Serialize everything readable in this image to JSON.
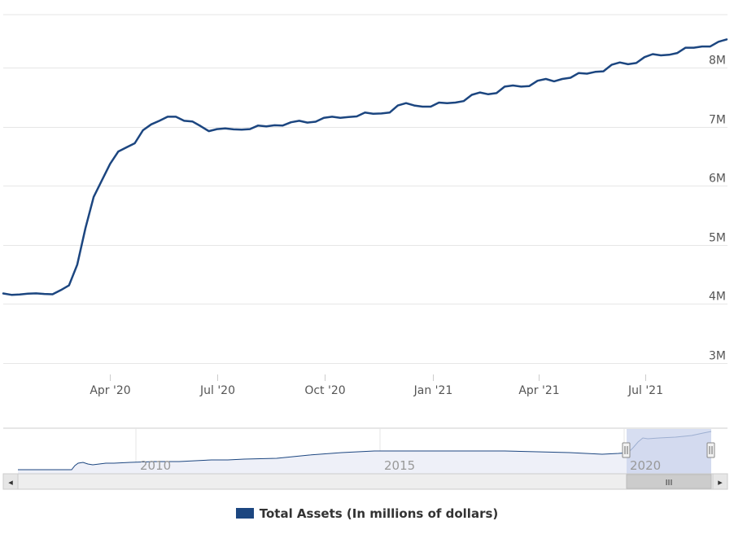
{
  "colors": {
    "series": "#1c4680",
    "grid": "#e6e6e6",
    "axis_text": "#555555",
    "navigator_fill": "#eef0f8",
    "navigator_mask": "#c9d3ec",
    "scrollbar_bg": "#eeeeee",
    "scrollbar_thumb": "#cccccc"
  },
  "legend": {
    "label": "Total Assets (In millions of dollars)"
  },
  "navigator": {
    "labels": [
      "2010",
      "2015",
      "2020"
    ],
    "thumb_grip": "III",
    "left_arrow": "◂",
    "right_arrow": "▸"
  },
  "chart_data": {
    "type": "line",
    "y_axis_side": "right",
    "grid": "horizontal",
    "legend_position": "bottom",
    "ylim": [
      2800000,
      8900000
    ],
    "yticks": [
      {
        "value": 3000000,
        "label": "3M"
      },
      {
        "value": 4000000,
        "label": "4M"
      },
      {
        "value": 5000000,
        "label": "5M"
      },
      {
        "value": 6000000,
        "label": "6M"
      },
      {
        "value": 7000000,
        "label": "7M"
      },
      {
        "value": 8000000,
        "label": "8M"
      }
    ],
    "xlim": [
      "2020-01-01",
      "2021-09-08"
    ],
    "xticks": [
      {
        "date": "2020-04-01",
        "label": "Apr '20"
      },
      {
        "date": "2020-07-01",
        "label": "Jul '20"
      },
      {
        "date": "2020-10-01",
        "label": "Oct '20"
      },
      {
        "date": "2021-01-01",
        "label": "Jan '21"
      },
      {
        "date": "2021-04-01",
        "label": "Apr '21"
      },
      {
        "date": "2021-07-01",
        "label": "Jul '21"
      }
    ],
    "series": [
      {
        "name": "Total Assets (In millions of dollars)",
        "points": [
          [
            "2020-01-01",
            4173000
          ],
          [
            "2020-01-08",
            4150000
          ],
          [
            "2020-01-15",
            4155000
          ],
          [
            "2020-01-22",
            4170000
          ],
          [
            "2020-01-29",
            4175000
          ],
          [
            "2020-02-05",
            4165000
          ],
          [
            "2020-02-12",
            4160000
          ],
          [
            "2020-02-19",
            4230000
          ],
          [
            "2020-02-26",
            4310000
          ],
          [
            "2020-03-04",
            4660000
          ],
          [
            "2020-03-11",
            5280000
          ],
          [
            "2020-03-18",
            5810000
          ],
          [
            "2020-03-25",
            6090000
          ],
          [
            "2020-04-01",
            6370000
          ],
          [
            "2020-04-08",
            6580000
          ],
          [
            "2020-04-15",
            6650000
          ],
          [
            "2020-04-22",
            6720000
          ],
          [
            "2020-04-29",
            6940000
          ],
          [
            "2020-05-06",
            7040000
          ],
          [
            "2020-05-13",
            7100000
          ],
          [
            "2020-05-20",
            7170000
          ],
          [
            "2020-05-27",
            7170000
          ],
          [
            "2020-06-03",
            7100000
          ],
          [
            "2020-06-10",
            7090000
          ],
          [
            "2020-06-17",
            7010000
          ],
          [
            "2020-06-24",
            6925000
          ],
          [
            "2020-07-01",
            6960000
          ],
          [
            "2020-07-08",
            6970000
          ],
          [
            "2020-07-15",
            6955000
          ],
          [
            "2020-07-22",
            6950000
          ],
          [
            "2020-07-29",
            6960000
          ],
          [
            "2020-08-05",
            7020000
          ],
          [
            "2020-08-12",
            7005000
          ],
          [
            "2020-08-19",
            7025000
          ],
          [
            "2020-08-26",
            7020000
          ],
          [
            "2020-09-02",
            7075000
          ],
          [
            "2020-09-09",
            7100000
          ],
          [
            "2020-09-16",
            7070000
          ],
          [
            "2020-09-23",
            7085000
          ],
          [
            "2020-09-30",
            7150000
          ],
          [
            "2020-10-07",
            7170000
          ],
          [
            "2020-10-14",
            7150000
          ],
          [
            "2020-10-21",
            7165000
          ],
          [
            "2020-10-28",
            7175000
          ],
          [
            "2020-11-04",
            7240000
          ],
          [
            "2020-11-11",
            7220000
          ],
          [
            "2020-11-18",
            7225000
          ],
          [
            "2020-11-25",
            7240000
          ],
          [
            "2020-12-02",
            7360000
          ],
          [
            "2020-12-09",
            7400000
          ],
          [
            "2020-12-16",
            7360000
          ],
          [
            "2020-12-23",
            7340000
          ],
          [
            "2020-12-30",
            7340000
          ],
          [
            "2021-01-06",
            7410000
          ],
          [
            "2021-01-13",
            7400000
          ],
          [
            "2021-01-20",
            7410000
          ],
          [
            "2021-01-27",
            7435000
          ],
          [
            "2021-02-03",
            7540000
          ],
          [
            "2021-02-10",
            7580000
          ],
          [
            "2021-02-17",
            7550000
          ],
          [
            "2021-02-24",
            7570000
          ],
          [
            "2021-03-03",
            7680000
          ],
          [
            "2021-03-10",
            7700000
          ],
          [
            "2021-03-17",
            7680000
          ],
          [
            "2021-03-24",
            7690000
          ],
          [
            "2021-03-31",
            7780000
          ],
          [
            "2021-04-07",
            7810000
          ],
          [
            "2021-04-14",
            7770000
          ],
          [
            "2021-04-21",
            7810000
          ],
          [
            "2021-04-28",
            7830000
          ],
          [
            "2021-05-05",
            7910000
          ],
          [
            "2021-05-12",
            7900000
          ],
          [
            "2021-05-19",
            7930000
          ],
          [
            "2021-05-26",
            7940000
          ],
          [
            "2021-06-02",
            8050000
          ],
          [
            "2021-06-09",
            8090000
          ],
          [
            "2021-06-16",
            8060000
          ],
          [
            "2021-06-23",
            8080000
          ],
          [
            "2021-06-30",
            8180000
          ],
          [
            "2021-07-07",
            8230000
          ],
          [
            "2021-07-14",
            8210000
          ],
          [
            "2021-07-21",
            8220000
          ],
          [
            "2021-07-28",
            8250000
          ],
          [
            "2021-08-04",
            8340000
          ],
          [
            "2021-08-11",
            8340000
          ],
          [
            "2021-08-18",
            8360000
          ],
          [
            "2021-08-25",
            8360000
          ],
          [
            "2021-09-01",
            8440000
          ],
          [
            "2021-09-08",
            8480000
          ]
        ]
      }
    ]
  }
}
